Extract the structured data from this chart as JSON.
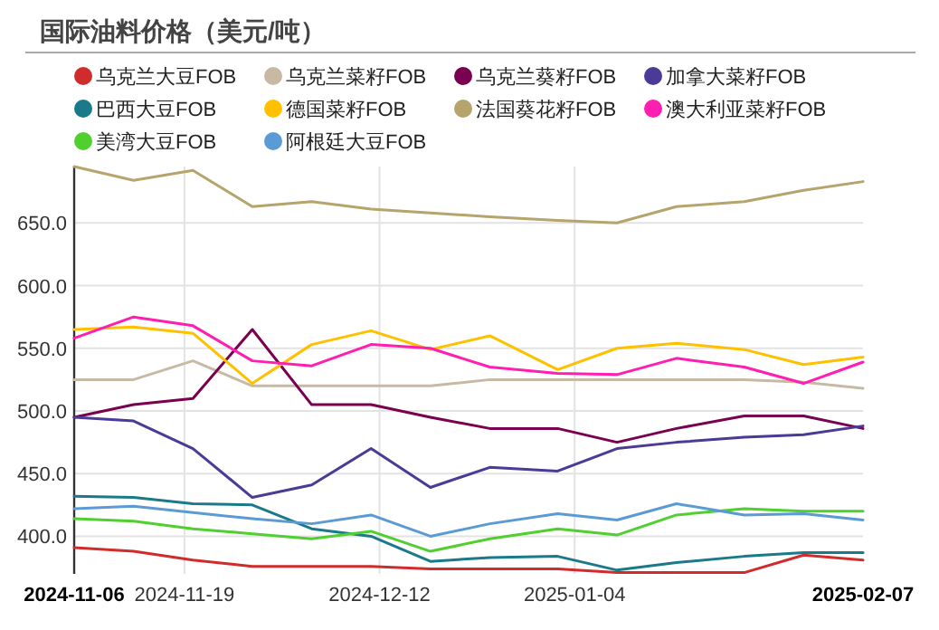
{
  "chart_data": {
    "type": "line",
    "title": "国际油料价格（美元/吨）",
    "x": [
      "2024-11-06",
      "2024-11-13",
      "2024-11-20",
      "2024-11-27",
      "2024-12-04",
      "2024-12-11",
      "2024-12-18",
      "2024-12-25",
      "2025-01-02",
      "2025-01-09",
      "2025-01-16",
      "2025-01-24",
      "2025-01-31",
      "2025-02-07"
    ],
    "xlim": [
      "2024-11-06",
      "2025-02-07"
    ],
    "xticks": [
      "2024-11-06",
      "2024-11-19",
      "2024-12-12",
      "2025-01-04",
      "2025-02-07"
    ],
    "ylim": [
      370,
      695
    ],
    "yticks": [
      {
        "value": 400,
        "label": "400.0"
      },
      {
        "value": 450,
        "label": "450.0"
      },
      {
        "value": 500,
        "label": "500.0"
      },
      {
        "value": 550,
        "label": "550.0"
      },
      {
        "value": 600,
        "label": "600.0"
      },
      {
        "value": 650,
        "label": "650.0"
      }
    ],
    "grid": true,
    "legend": "top",
    "marker": "none",
    "line_style": "solid",
    "series": [
      {
        "name": "乌克兰大豆FOB",
        "color": "#d02c2c",
        "values": [
          391,
          388,
          381,
          376,
          376,
          376,
          374,
          374,
          374,
          371,
          371,
          371,
          385,
          381
        ]
      },
      {
        "name": "乌克兰菜籽FOB",
        "color": "#c8b9a5",
        "values": [
          525,
          525,
          540,
          520,
          520,
          520,
          520,
          525,
          525,
          525,
          525,
          525,
          523,
          518
        ]
      },
      {
        "name": "乌克兰葵籽FOB",
        "color": "#7a0050",
        "values": [
          495,
          505,
          510,
          565,
          505,
          505,
          495,
          486,
          486,
          475,
          486,
          496,
          496,
          486
        ]
      },
      {
        "name": "加拿大菜籽FOB",
        "color": "#4b3a96",
        "values": [
          495,
          492,
          470,
          431,
          441,
          470,
          439,
          455,
          452,
          470,
          475,
          479,
          481,
          488
        ]
      },
      {
        "name": "巴西大豆FOB",
        "color": "#1a7a8a",
        "values": [
          432,
          431,
          426,
          425,
          406,
          400,
          380,
          383,
          384,
          373,
          379,
          384,
          387,
          387
        ]
      },
      {
        "name": "德国菜籽FOB",
        "color": "#ffc000",
        "values": [
          565,
          567,
          562,
          522,
          553,
          564,
          549,
          560,
          533,
          550,
          554,
          549,
          537,
          543
        ]
      },
      {
        "name": "法国葵花籽FOB",
        "color": "#b5a56c",
        "values": [
          695,
          684,
          692,
          663,
          667,
          661,
          658,
          655,
          652,
          650,
          663,
          667,
          676,
          683
        ]
      },
      {
        "name": "澳大利亚菜籽FOB",
        "color": "#ff1eb0",
        "values": [
          558,
          575,
          568,
          540,
          536,
          553,
          550,
          535,
          530,
          529,
          542,
          535,
          522,
          539
        ]
      },
      {
        "name": "美湾大豆FOB",
        "color": "#4fd02f",
        "values": [
          414,
          412,
          406,
          402,
          398,
          404,
          388,
          398,
          406,
          401,
          417,
          422,
          420,
          420
        ]
      },
      {
        "name": "阿根廷大豆FOB",
        "color": "#5b9bd5",
        "values": [
          422,
          424,
          419,
          414,
          410,
          417,
          400,
          410,
          418,
          413,
          426,
          417,
          418,
          413
        ]
      }
    ]
  }
}
